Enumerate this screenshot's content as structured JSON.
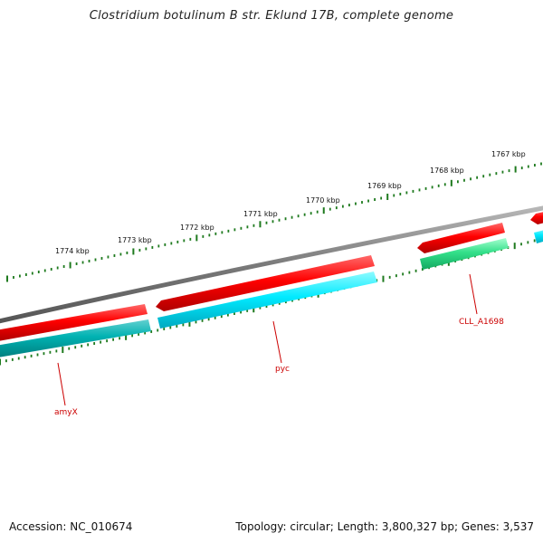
{
  "title": "Clostridium botulinum B str. Eklund 17B, complete genome",
  "footer": {
    "accession": "Accession: NC_010674",
    "stats": "Topology: circular; Length: 3,800,327 bp; Genes: 3,537"
  },
  "ruler": {
    "labels": [
      "1767 kbp",
      "1768 kbp",
      "1769 kbp",
      "1770 kbp",
      "1771 kbp",
      "1772 kbp",
      "1773 kbp",
      "1774 kbp"
    ]
  },
  "genes": {
    "labels": [
      "amyX",
      "pyc",
      "CLL_A1698"
    ]
  },
  "colors": {
    "backbone": "#7a7a7a",
    "forward_cds": "#ff0000",
    "reverse_cds": "#00e5ff",
    "reverse_cds_dark": "#00b2b2",
    "reverse_cds_green": "#33e08a",
    "ticks": "#1e7a1e",
    "label": "#cc0000"
  }
}
